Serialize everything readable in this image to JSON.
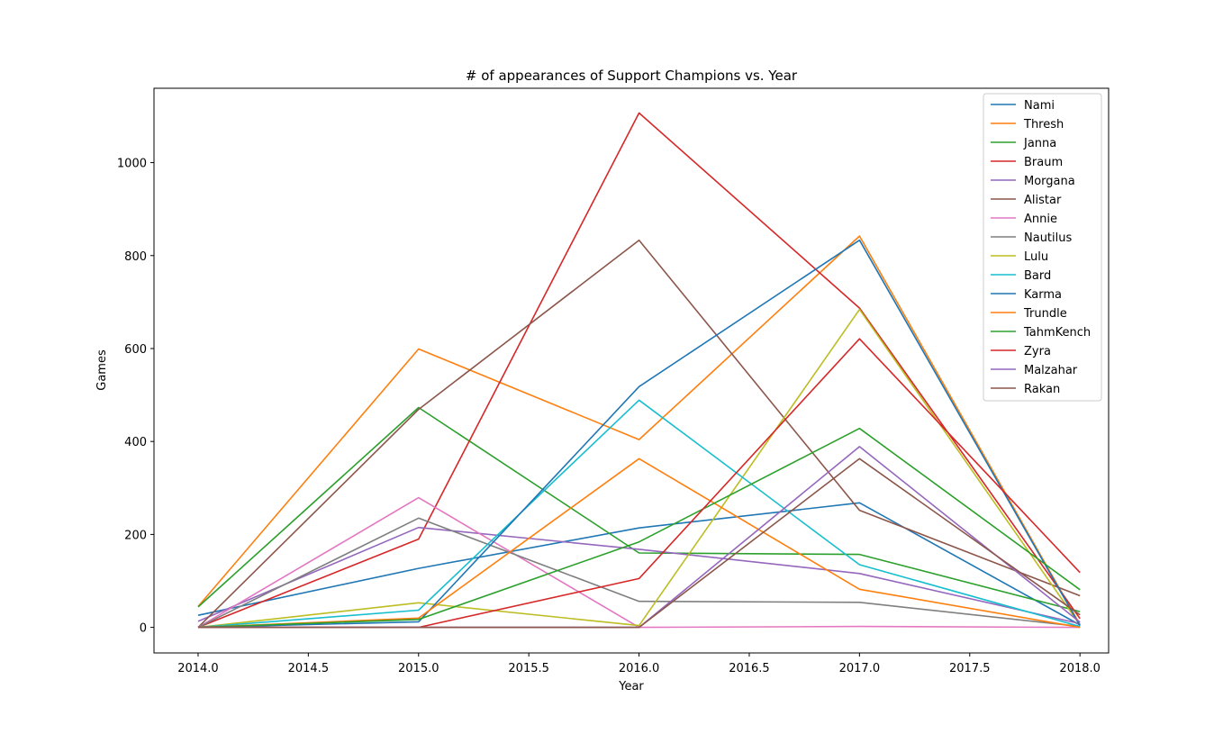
{
  "chart_data": {
    "type": "line",
    "title": "# of appearances of Support Champions vs. Year",
    "xlabel": "Year",
    "ylabel": "Games",
    "xlim": [
      2013.8,
      2018.13
    ],
    "ylim": [
      -55,
      1160
    ],
    "xticks": [
      2014.0,
      2014.5,
      2015.0,
      2015.5,
      2016.0,
      2016.5,
      2017.0,
      2017.5,
      2018.0
    ],
    "xtick_labels": [
      "2014.0",
      "2014.5",
      "2015.0",
      "2015.5",
      "2016.0",
      "2016.5",
      "2017.0",
      "2017.5",
      "2018.0"
    ],
    "yticks": [
      0,
      200,
      400,
      600,
      800,
      1000
    ],
    "ytick_labels": [
      "0",
      "200",
      "400",
      "600",
      "800",
      "1000"
    ],
    "grid": false,
    "legend": "top-right",
    "x": [
      2014,
      2015,
      2016,
      2017,
      2018
    ],
    "series": [
      {
        "name": "Nami",
        "color": "#1f77b4",
        "values": [
          26,
          127,
          214,
          268,
          5
        ]
      },
      {
        "name": "Thresh",
        "color": "#ff7f0e",
        "values": [
          45,
          599,
          404,
          842,
          6
        ]
      },
      {
        "name": "Janna",
        "color": "#2ca02c",
        "values": [
          44,
          473,
          160,
          157,
          34
        ]
      },
      {
        "name": "Braum",
        "color": "#d62728",
        "values": [
          0,
          190,
          1107,
          687,
          19
        ]
      },
      {
        "name": "Morgana",
        "color": "#9467bd",
        "values": [
          13,
          215,
          168,
          116,
          8
        ]
      },
      {
        "name": "Alistar",
        "color": "#8c564b",
        "values": [
          0,
          469,
          833,
          252,
          68
        ]
      },
      {
        "name": "Annie",
        "color": "#e377c2",
        "values": [
          0,
          279,
          0,
          2,
          0
        ]
      },
      {
        "name": "Nautilus",
        "color": "#7f7f7f",
        "values": [
          0,
          235,
          56,
          54,
          2
        ]
      },
      {
        "name": "Lulu",
        "color": "#bcbd22",
        "values": [
          0,
          53,
          4,
          684,
          5
        ]
      },
      {
        "name": "Bard",
        "color": "#17becf",
        "values": [
          0,
          37,
          489,
          135,
          2
        ]
      },
      {
        "name": "Karma",
        "color": "#1f77b4",
        "values": [
          0,
          12,
          518,
          833,
          4
        ]
      },
      {
        "name": "Trundle",
        "color": "#ff7f0e",
        "values": [
          0,
          20,
          363,
          82,
          0
        ]
      },
      {
        "name": "TahmKench",
        "color": "#2ca02c",
        "values": [
          0,
          17,
          184,
          428,
          81
        ]
      },
      {
        "name": "Zyra",
        "color": "#d62728",
        "values": [
          0,
          0,
          105,
          621,
          118
        ]
      },
      {
        "name": "Malzahar",
        "color": "#9467bd",
        "values": [
          0,
          0,
          0,
          389,
          11
        ]
      },
      {
        "name": "Rakan",
        "color": "#8c564b",
        "values": [
          0,
          0,
          0,
          363,
          27
        ]
      }
    ]
  }
}
